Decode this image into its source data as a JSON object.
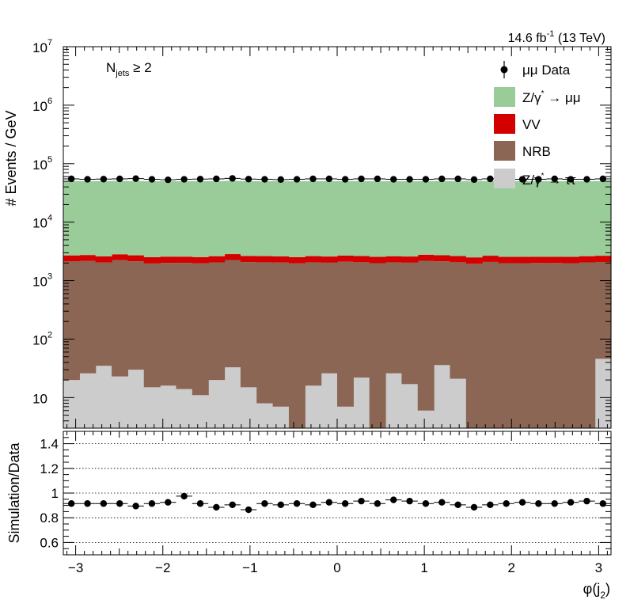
{
  "header": {
    "lumi": "14.6",
    "lumi_unit_base": "fb",
    "lumi_exp": "-1",
    "energy": "(13 TeV)"
  },
  "annotation": {
    "base": "N",
    "sub": "jets",
    "rel": "≥ 2"
  },
  "legend": {
    "data_label": "μμ Data",
    "zmumu_base": "Z/γ",
    "zmumu_star": "*",
    "zmumu_rest": "→ μμ",
    "vv": "VV",
    "nrb": "NRB",
    "ztautau_base": "Z/γ",
    "ztautau_star": "*",
    "ztautau_rest": "→ ττ"
  },
  "colors": {
    "zmumu": "#99cc99",
    "vv": "#d40000",
    "nrb": "#8b6655",
    "ztautau": "#cccccc",
    "data": "#000000"
  },
  "chart_data": [
    {
      "type": "bar",
      "stacked": true,
      "log_y": true,
      "ylabel": "# Events / GeV",
      "ylim": [
        3,
        10000000
      ],
      "xlim": [
        -3.1416,
        3.1416
      ],
      "yticks": [
        {
          "value": 10,
          "label": "10"
        },
        {
          "value": 100,
          "label": "10",
          "exp": "2"
        },
        {
          "value": 1000,
          "label": "10",
          "exp": "3"
        },
        {
          "value": 10000,
          "label": "10",
          "exp": "4"
        },
        {
          "value": 100000,
          "label": "10",
          "exp": "5"
        },
        {
          "value": 1000000,
          "label": "10",
          "exp": "6"
        },
        {
          "value": 10000000,
          "label": "10",
          "exp": "7"
        }
      ],
      "nbins": 34,
      "series": [
        {
          "name": "Z/γ* → ττ",
          "key": "ztautau",
          "values": [
            20,
            26,
            35,
            23,
            30,
            15,
            16,
            14,
            11,
            20,
            33,
            15,
            8,
            7,
            0,
            16,
            26,
            7,
            22,
            0,
            26,
            17,
            6,
            36,
            21,
            0,
            0,
            0,
            0,
            0,
            0,
            0,
            0,
            46
          ]
        },
        {
          "name": "NRB",
          "key": "nrb",
          "values": [
            2110,
            2140,
            2000,
            2210,
            2110,
            1950,
            1990,
            2000,
            1960,
            2030,
            2220,
            2060,
            2050,
            2030,
            1970,
            2040,
            2000,
            2100,
            2040,
            1990,
            2030,
            2010,
            2180,
            2100,
            2040,
            1940,
            2090,
            1990,
            1990,
            2000,
            2000,
            1990,
            2050,
            2040
          ]
        },
        {
          "name": "VV",
          "key": "vv",
          "values": [
            570,
            580,
            560,
            590,
            570,
            560,
            570,
            560,
            560,
            570,
            590,
            570,
            570,
            560,
            560,
            570,
            560,
            580,
            570,
            560,
            560,
            560,
            590,
            580,
            570,
            560,
            580,
            560,
            560,
            560,
            560,
            560,
            570,
            580
          ]
        },
        {
          "name": "Z/γ* → μμ",
          "key": "zmumu",
          "values": [
            47700,
            47600,
            47700,
            47800,
            47800,
            47600,
            47500,
            47500,
            47700,
            47700,
            47900,
            47600,
            47600,
            47600,
            47600,
            47600,
            47700,
            47800,
            47700,
            47600,
            47600,
            47600,
            47600,
            47800,
            47700,
            47600,
            47700,
            47500,
            47600,
            47700,
            47500,
            47600,
            47600,
            47500
          ]
        }
      ],
      "data": {
        "name": "μμ Data",
        "values": [
          55000,
          54000,
          54500,
          55000,
          55500,
          54000,
          53000,
          54000,
          54500,
          55000,
          56000,
          54500,
          54000,
          53500,
          54000,
          55000,
          55000,
          54000,
          55000,
          55000,
          54000,
          54000,
          54000,
          55000,
          55000,
          53500,
          55000,
          54500,
          54000,
          54000,
          55000,
          54000,
          54000,
          55000
        ]
      }
    },
    {
      "type": "scatter",
      "ylabel": "Simulation/Data",
      "xlabel_base": "φ(j",
      "xlabel_sub": "2",
      "xlabel_close": ")",
      "xlim": [
        -3.1416,
        3.1416
      ],
      "ylim": [
        0.5,
        1.5
      ],
      "grid_y": [
        0.6,
        0.8,
        1.0,
        1.2,
        1.4
      ],
      "yticks": [
        "0.6",
        "0.8",
        "1",
        "1.2",
        "1.4"
      ],
      "xticks": [
        {
          "value": -3,
          "label": "−3"
        },
        {
          "value": -2,
          "label": "−2"
        },
        {
          "value": -1,
          "label": "−1"
        },
        {
          "value": 0,
          "label": "0"
        },
        {
          "value": 1,
          "label": "1"
        },
        {
          "value": 2,
          "label": "2"
        },
        {
          "value": 3,
          "label": "3"
        }
      ],
      "ratio": [
        0.915,
        0.915,
        0.915,
        0.915,
        0.895,
        0.915,
        0.925,
        0.975,
        0.915,
        0.885,
        0.905,
        0.865,
        0.915,
        0.905,
        0.915,
        0.905,
        0.925,
        0.915,
        0.935,
        0.915,
        0.945,
        0.935,
        0.915,
        0.925,
        0.905,
        0.885,
        0.905,
        0.915,
        0.925,
        0.915,
        0.915,
        0.925,
        0.935,
        0.915
      ],
      "ratio_err": [
        0.008,
        0.008,
        0.008,
        0.008,
        0.008,
        0.008,
        0.008,
        0.008,
        0.008,
        0.008,
        0.008,
        0.008,
        0.008,
        0.008,
        0.008,
        0.008,
        0.008,
        0.008,
        0.008,
        0.008,
        0.008,
        0.008,
        0.008,
        0.008,
        0.008,
        0.008,
        0.008,
        0.008,
        0.008,
        0.008,
        0.008,
        0.008,
        0.008,
        0.008
      ]
    }
  ]
}
